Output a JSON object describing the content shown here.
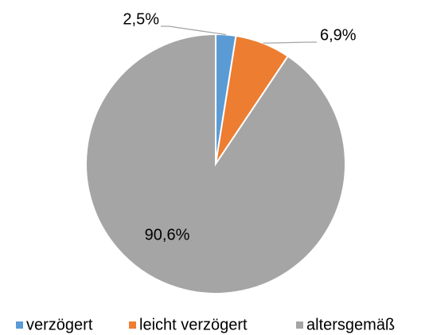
{
  "chart_data": {
    "type": "pie",
    "categories": [
      "verzögert",
      "leicht verzögert",
      "altersgemäß"
    ],
    "values": [
      2.5,
      6.9,
      90.6
    ],
    "value_labels": [
      "2,5%",
      "6,9%",
      "90,6%"
    ],
    "colors": [
      "#5b9bd5",
      "#ed7d31",
      "#a5a5a5"
    ],
    "legend": "bottom"
  }
}
